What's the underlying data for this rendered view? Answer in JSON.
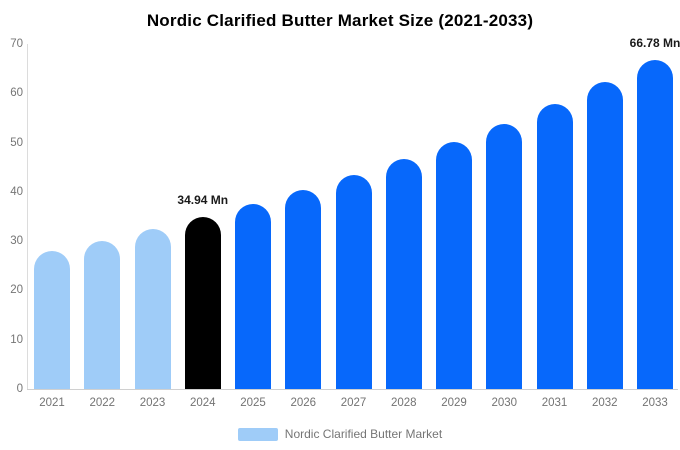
{
  "title": "Nordic Clarified Butter Market Size (2021-2033)",
  "legend": {
    "label": "Nordic Clarified Butter Market",
    "swatch_color": "#9fccf8"
  },
  "colors": {
    "historical_bar": "#9fccf8",
    "highlight_bar": "#000000",
    "forecast_bar": "#0768fb",
    "axis_line": "#dcdcdc",
    "tick_label": "#757575",
    "annotation_text": "#1a1a1a",
    "title_text": "#000000",
    "background": "#ffffff"
  },
  "chart_data": {
    "type": "bar",
    "title": "Nordic Clarified Butter Market Size (2021-2033)",
    "xlabel": "",
    "ylabel": "",
    "unit": "Mn",
    "categories": [
      "2021",
      "2022",
      "2023",
      "2024",
      "2025",
      "2026",
      "2027",
      "2028",
      "2029",
      "2030",
      "2031",
      "2032",
      "2033"
    ],
    "values": [
      28.0,
      30.1,
      32.5,
      34.94,
      37.5,
      40.3,
      43.4,
      46.6,
      50.1,
      53.8,
      57.9,
      62.2,
      66.78
    ],
    "bar_colors": [
      "#9fccf8",
      "#9fccf8",
      "#9fccf8",
      "#000000",
      "#0768fb",
      "#0768fb",
      "#0768fb",
      "#0768fb",
      "#0768fb",
      "#0768fb",
      "#0768fb",
      "#0768fb",
      "#0768fb"
    ],
    "ylim": [
      0,
      70
    ],
    "yticks": [
      0,
      10,
      20,
      30,
      40,
      50,
      60,
      70
    ],
    "grid": false,
    "legend_entries": [
      "Nordic Clarified Butter Market"
    ],
    "legend_position": "bottom",
    "annotations": [
      {
        "category": "2024",
        "text": "34.94 Mn"
      },
      {
        "category": "2033",
        "text": "66.78 Mn"
      }
    ]
  }
}
